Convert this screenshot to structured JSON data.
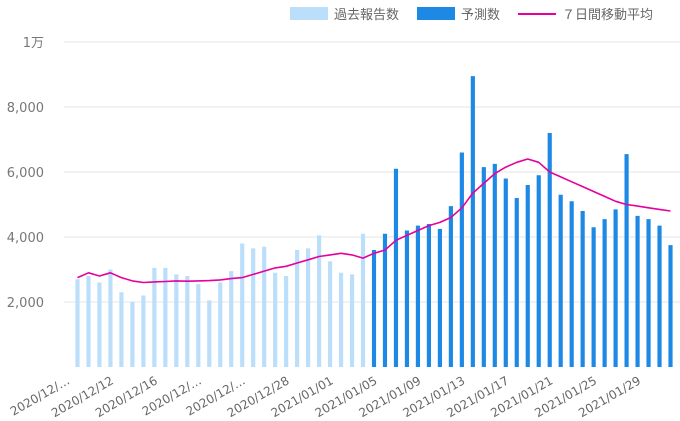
{
  "chart_data": {
    "type": "bar",
    "legend": [
      {
        "label": "過去報告数",
        "color": "#bbdefb"
      },
      {
        "label": "予測数",
        "color": "#1e88e5"
      },
      {
        "label": "７日間移動平均",
        "color": "#e6009e"
      }
    ],
    "legend_position": "top",
    "ylim": [
      0,
      10000
    ],
    "y_ticks": [
      "2,000",
      "4,000",
      "6,000",
      "8,000",
      "1万"
    ],
    "y_tick_values": [
      2000,
      4000,
      6000,
      8000,
      10000
    ],
    "x_tick_labels": [
      "2020/12/…",
      "2020/12/12",
      "2020/12/16",
      "2020/12/…",
      "2020/12/…",
      "2020/12/28",
      "2021/01/01",
      "2021/01/05",
      "2021/01/09",
      "2021/01/13",
      "2021/01/17",
      "2021/01/21",
      "2021/01/25",
      "2021/01/29"
    ],
    "x_tick_dates": [
      "2020-12-08",
      "2020-12-12",
      "2020-12-16",
      "2020-12-20",
      "2020-12-24",
      "2020-12-28",
      "2021-01-01",
      "2021-01-05",
      "2021-01-09",
      "2021-01-13",
      "2021-01-17",
      "2021-01-21",
      "2021-01-25",
      "2021-01-29"
    ],
    "dates": [
      "2020-12-09",
      "2020-12-10",
      "2020-12-11",
      "2020-12-12",
      "2020-12-13",
      "2020-12-14",
      "2020-12-15",
      "2020-12-16",
      "2020-12-17",
      "2020-12-18",
      "2020-12-19",
      "2020-12-20",
      "2020-12-21",
      "2020-12-22",
      "2020-12-23",
      "2020-12-24",
      "2020-12-25",
      "2020-12-26",
      "2020-12-27",
      "2020-12-28",
      "2020-12-29",
      "2020-12-30",
      "2020-12-31",
      "2021-01-01",
      "2021-01-02",
      "2021-01-03",
      "2021-01-04",
      "2021-01-05",
      "2021-01-06",
      "2021-01-07",
      "2021-01-08",
      "2021-01-09",
      "2021-01-10",
      "2021-01-11",
      "2021-01-12",
      "2021-01-13",
      "2021-01-14",
      "2021-01-15",
      "2021-01-16",
      "2021-01-17",
      "2021-01-18",
      "2021-01-19",
      "2021-01-20",
      "2021-01-21",
      "2021-01-22",
      "2021-01-23",
      "2021-01-24",
      "2021-01-25",
      "2021-01-26",
      "2021-01-27",
      "2021-01-28",
      "2021-01-29",
      "2021-01-30",
      "2021-01-31",
      "2021-02-01"
    ],
    "series": [
      {
        "name": "過去報告数",
        "type": "bar",
        "color": "#bbdefb",
        "values": [
          2700,
          2800,
          2600,
          3000,
          2300,
          2000,
          2200,
          3050,
          3050,
          2850,
          2800,
          2550,
          2050,
          2600,
          2950,
          3800,
          3650,
          3700,
          2900,
          2800,
          3600,
          3650,
          4050,
          3250,
          2900,
          2850,
          4100,
          null,
          null,
          null,
          null,
          null,
          null,
          null,
          null,
          null,
          null,
          null,
          null,
          null,
          null,
          null,
          null,
          null,
          null,
          null,
          null,
          null,
          null,
          null,
          null,
          null,
          null,
          null,
          null
        ]
      },
      {
        "name": "予測数",
        "type": "bar",
        "color": "#1e88e5",
        "values": [
          null,
          null,
          null,
          null,
          null,
          null,
          null,
          null,
          null,
          null,
          null,
          null,
          null,
          null,
          null,
          null,
          null,
          null,
          null,
          null,
          null,
          null,
          null,
          null,
          null,
          null,
          null,
          3600,
          4100,
          6100,
          4200,
          4350,
          4400,
          4250,
          4950,
          6600,
          8950,
          6150,
          6250,
          5800,
          5200,
          5600,
          5900,
          7200,
          5300,
          5100,
          4800,
          4300,
          4550,
          4850,
          6550,
          4650,
          4550,
          4350,
          3750
        ]
      },
      {
        "name": "７日間移動平均",
        "type": "line",
        "color": "#e6009e",
        "values": [
          2750,
          2900,
          2800,
          2900,
          2750,
          2650,
          2600,
          2620,
          2630,
          2650,
          2640,
          2650,
          2660,
          2680,
          2720,
          2750,
          2850,
          2950,
          3050,
          3100,
          3200,
          3300,
          3400,
          3450,
          3500,
          3450,
          3350,
          3500,
          3600,
          3900,
          4050,
          4200,
          4350,
          4450,
          4600,
          4900,
          5350,
          5650,
          5950,
          6150,
          6300,
          6400,
          6300,
          6000,
          5850,
          5700,
          5550,
          5400,
          5250,
          5100,
          5000,
          4950,
          4900,
          4850,
          4800
        ]
      }
    ]
  }
}
